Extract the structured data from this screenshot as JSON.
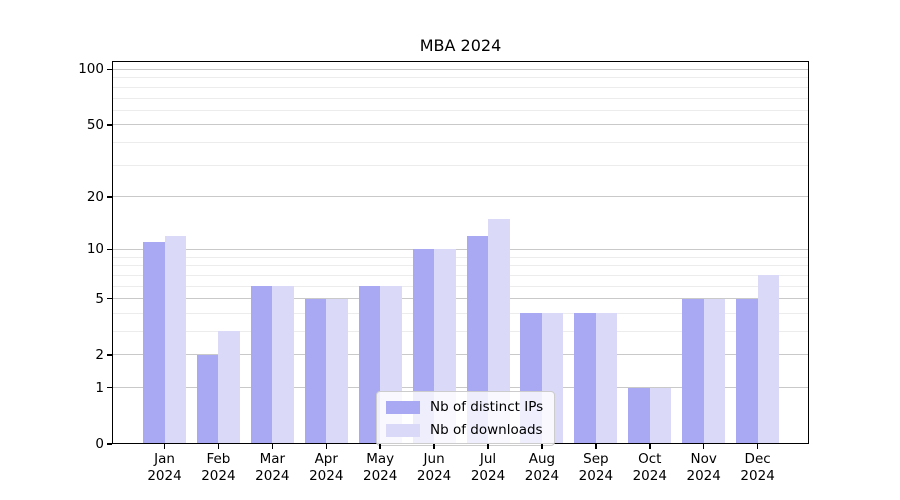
{
  "chart_data": {
    "type": "bar",
    "title": "MBA 2024",
    "categories": [
      "Jan",
      "Feb",
      "Mar",
      "Apr",
      "May",
      "Jun",
      "Jul",
      "Aug",
      "Sep",
      "Oct",
      "Nov",
      "Dec"
    ],
    "category_year": "2024",
    "series": [
      {
        "name": "Nb of distinct IPs",
        "color": "#a9a9f3",
        "values": [
          11,
          2,
          6,
          5,
          6,
          10,
          12,
          4,
          4,
          1,
          5,
          5
        ]
      },
      {
        "name": "Nb of downloads",
        "color": "#dadaf8",
        "values": [
          12,
          3,
          6,
          5,
          6,
          10,
          15,
          4,
          4,
          1,
          5,
          7
        ]
      }
    ],
    "yscale": "log1p",
    "ylim": [
      0,
      111
    ],
    "yticks": [
      0,
      1,
      2,
      5,
      10,
      20,
      50,
      100
    ],
    "yticks_minor": [
      3,
      4,
      6,
      7,
      8,
      9,
      30,
      40,
      60,
      70,
      80,
      90
    ],
    "grid": "horizontal",
    "legend_position": "lower center",
    "colors": {
      "grid_major": "#c9c9c9",
      "grid_minor": "#ececec",
      "axis": "#000000",
      "text": "#000000",
      "legend_border": "#cccccc"
    }
  }
}
